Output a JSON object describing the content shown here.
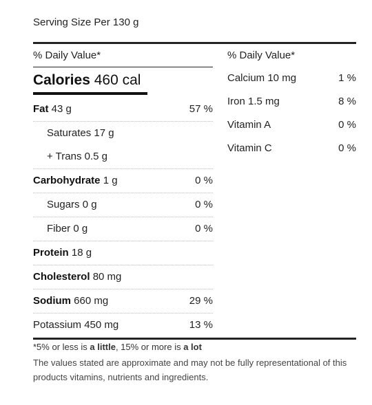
{
  "serving": "Serving Size Per 130 g",
  "left": {
    "header": "% Daily Value*",
    "calories": {
      "label": "Calories",
      "value": "460 cal"
    },
    "rows": [
      {
        "label": "Fat",
        "amount": "43 g",
        "pct": "57 %"
      },
      {
        "label": "Saturates 17 g",
        "pct": ""
      },
      {
        "label": "+ Trans 0.5 g",
        "pct": ""
      },
      {
        "label": "Carbohydrate",
        "amount": "1 g",
        "pct": "0 %"
      },
      {
        "label": "Sugars 0 g",
        "pct": "0 %"
      },
      {
        "label": "Fiber 0 g",
        "pct": "0 %"
      },
      {
        "label": "Protein",
        "amount": "18 g",
        "pct": ""
      },
      {
        "label": "Cholesterol",
        "amount": "80 mg",
        "pct": ""
      },
      {
        "label": "Sodium",
        "amount": "660 mg",
        "pct": "29 %"
      },
      {
        "label": "Potassium 450 mg",
        "pct": "13 %"
      }
    ]
  },
  "right": {
    "header": "% Daily Value*",
    "rows": [
      {
        "label": "Calcium 10 mg",
        "pct": "1 %"
      },
      {
        "label": "Iron 1.5 mg",
        "pct": "8 %"
      },
      {
        "label": "Vitamin A",
        "pct": "0 %"
      },
      {
        "label": "Vitamin C",
        "pct": "0 %"
      }
    ]
  },
  "footer": {
    "note_a": "*5% or less is ",
    "note_b": "a little",
    "note_c": ", 15% or more is ",
    "note_d": "a lot",
    "disclaimer": "The values stated are approximate and may not be fully representational of this products vitamins, nutrients and ingredients."
  }
}
